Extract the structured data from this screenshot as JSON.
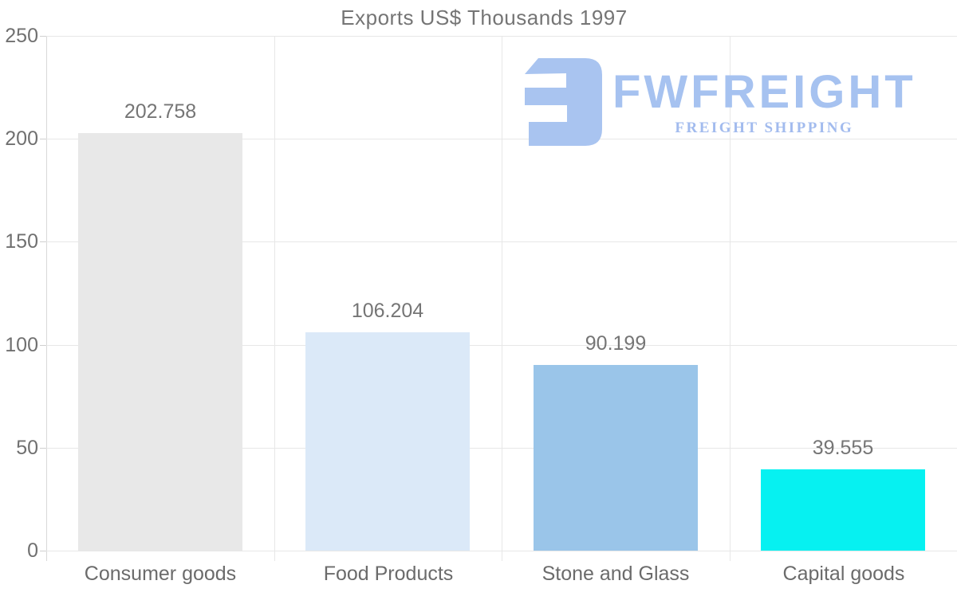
{
  "title": "Exports US$ Thousands 1997",
  "watermark": {
    "brand": "FWFREIGHT",
    "tagline": "FREIGHT SHIPPING",
    "color": "#a6c2f0"
  },
  "axis": {
    "y_tick_labels": [
      "0",
      "50",
      "100",
      "150",
      "200",
      "250"
    ]
  },
  "chart_data": {
    "type": "bar",
    "title": "Exports US$ Thousands 1997",
    "categories": [
      "Consumer goods",
      "Food Products",
      "Stone and Glass",
      "Capital goods"
    ],
    "values": [
      202.758,
      106.204,
      90.199,
      39.555
    ],
    "value_labels": [
      "202.758",
      "106.204",
      "90.199",
      "39.555"
    ],
    "bar_colors": [
      "#e8e8e8",
      "#dbe9f8",
      "#9ac5e9",
      "#06f1f1"
    ],
    "xlabel": "",
    "ylabel": "",
    "ylim": [
      0,
      250
    ],
    "yticks": [
      0,
      50,
      100,
      150,
      200,
      250
    ],
    "grid": true,
    "legend": false,
    "colors": {
      "gridline": "#e7e7e7",
      "axis_line": "#d9d9d9",
      "title_text": "#757575",
      "tick_text": "#707070",
      "category_text": "#6b6b6b",
      "value_text": "#757575"
    }
  }
}
